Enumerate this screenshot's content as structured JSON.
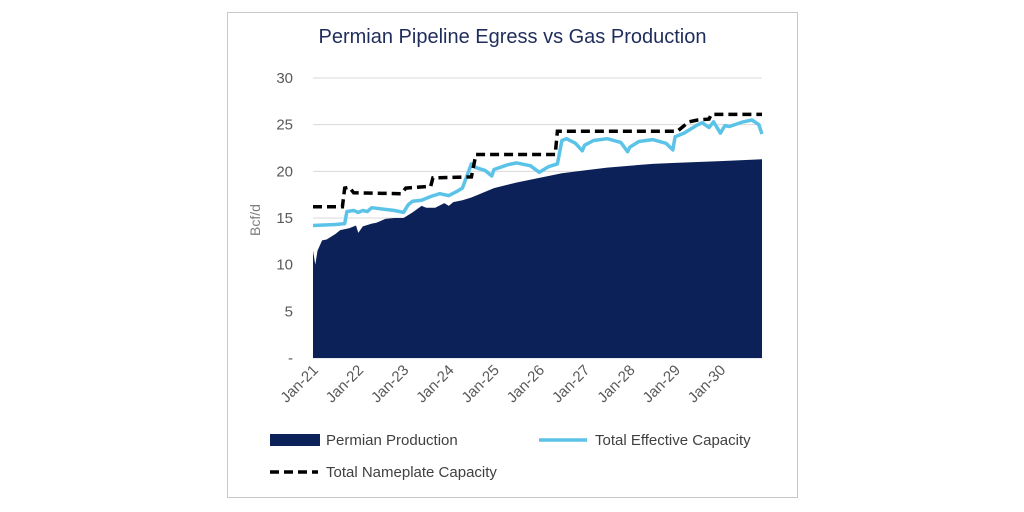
{
  "chart_data": {
    "type": "area",
    "title": "Permian Pipeline Egress vs Gas Production",
    "xlabel": "",
    "ylabel": "Bcf/d",
    "ylim": [
      0,
      30
    ],
    "y_ticks": [
      "-",
      "5",
      "10",
      "15",
      "20",
      "25",
      "30"
    ],
    "x_ticks": [
      "Jan-21",
      "Jan-22",
      "Jan-23",
      "Jan-24",
      "Jan-25",
      "Jan-26",
      "Jan-27",
      "Jan-28",
      "Jan-29",
      "Jan-30"
    ],
    "x_start": "Jan-21",
    "grid": true,
    "legend": "bottom",
    "series": [
      {
        "name": "Permian Production",
        "kind": "area",
        "color": "#0b2158",
        "x": [
          2021.0,
          2021.05,
          2021.1,
          2021.2,
          2021.3,
          2021.5,
          2021.6,
          2021.8,
          2021.95,
          2022.0,
          2022.1,
          2022.3,
          2022.4,
          2022.6,
          2022.8,
          2023.0,
          2023.2,
          2023.4,
          2023.5,
          2023.7,
          2023.9,
          2024.0,
          2024.1,
          2024.3,
          2024.5,
          2025.0,
          2025.5,
          2026.0,
          2026.5,
          2027.0,
          2027.5,
          2028.0,
          2028.5,
          2029.0,
          2029.5,
          2030.0,
          2030.5,
          2030.92
        ],
        "values": [
          11.5,
          10.0,
          11.5,
          12.6,
          12.7,
          13.3,
          13.7,
          13.9,
          14.2,
          13.4,
          14.1,
          14.4,
          14.5,
          14.9,
          15.0,
          15.0,
          15.6,
          16.3,
          16.1,
          16.1,
          16.6,
          16.3,
          16.7,
          16.9,
          17.2,
          18.2,
          18.8,
          19.3,
          19.8,
          20.1,
          20.4,
          20.6,
          20.8,
          20.9,
          21.0,
          21.1,
          21.2,
          21.3
        ]
      },
      {
        "name": "Total Effective Capacity",
        "kind": "line",
        "color": "#5bc3e8",
        "x": [
          2021.0,
          2021.5,
          2021.7,
          2021.75,
          2021.9,
          2022.0,
          2022.1,
          2022.2,
          2022.3,
          2022.8,
          2023.0,
          2023.1,
          2023.2,
          2023.4,
          2023.6,
          2023.8,
          2024.0,
          2024.2,
          2024.3,
          2024.5,
          2024.6,
          2024.8,
          2024.95,
          2025.0,
          2025.3,
          2025.5,
          2025.7,
          2025.8,
          2026.0,
          2026.2,
          2026.4,
          2026.5,
          2026.6,
          2026.8,
          2026.95,
          2027.0,
          2027.2,
          2027.5,
          2027.8,
          2027.95,
          2028.0,
          2028.2,
          2028.5,
          2028.8,
          2028.95,
          2029.0,
          2029.2,
          2029.4,
          2029.5,
          2029.6,
          2029.75,
          2029.85,
          2030.0,
          2030.1,
          2030.2,
          2030.5,
          2030.7,
          2030.85,
          2030.92
        ],
        "values": [
          14.2,
          14.3,
          14.4,
          15.7,
          15.8,
          15.6,
          15.8,
          15.7,
          16.1,
          15.8,
          15.6,
          16.4,
          16.8,
          16.9,
          17.3,
          17.6,
          17.4,
          17.9,
          18.2,
          20.8,
          20.4,
          20.1,
          19.5,
          20.2,
          20.7,
          20.9,
          20.7,
          20.6,
          19.9,
          20.5,
          20.8,
          23.3,
          23.5,
          23.0,
          22.2,
          22.8,
          23.3,
          23.5,
          23.1,
          22.1,
          22.6,
          23.2,
          23.4,
          23.0,
          22.3,
          23.7,
          24.1,
          24.7,
          25.0,
          25.2,
          24.7,
          25.3,
          24.1,
          24.9,
          24.8,
          25.3,
          25.5,
          25.0,
          24.0
        ]
      },
      {
        "name": "Total Nameplate Capacity",
        "kind": "dashed",
        "color": "#000000",
        "x": [
          2021.0,
          2021.65,
          2021.7,
          2021.8,
          2021.9,
          2022.95,
          2023.05,
          2023.6,
          2023.65,
          2024.5,
          2024.6,
          2026.35,
          2026.4,
          2029.05,
          2029.3,
          2029.5,
          2029.75,
          2029.8,
          2030.92
        ],
        "values": [
          16.2,
          16.2,
          18.2,
          18.3,
          17.7,
          17.6,
          18.2,
          18.4,
          19.3,
          19.4,
          21.8,
          21.8,
          24.3,
          24.3,
          25.3,
          25.5,
          25.6,
          26.1,
          26.1
        ]
      }
    ]
  }
}
